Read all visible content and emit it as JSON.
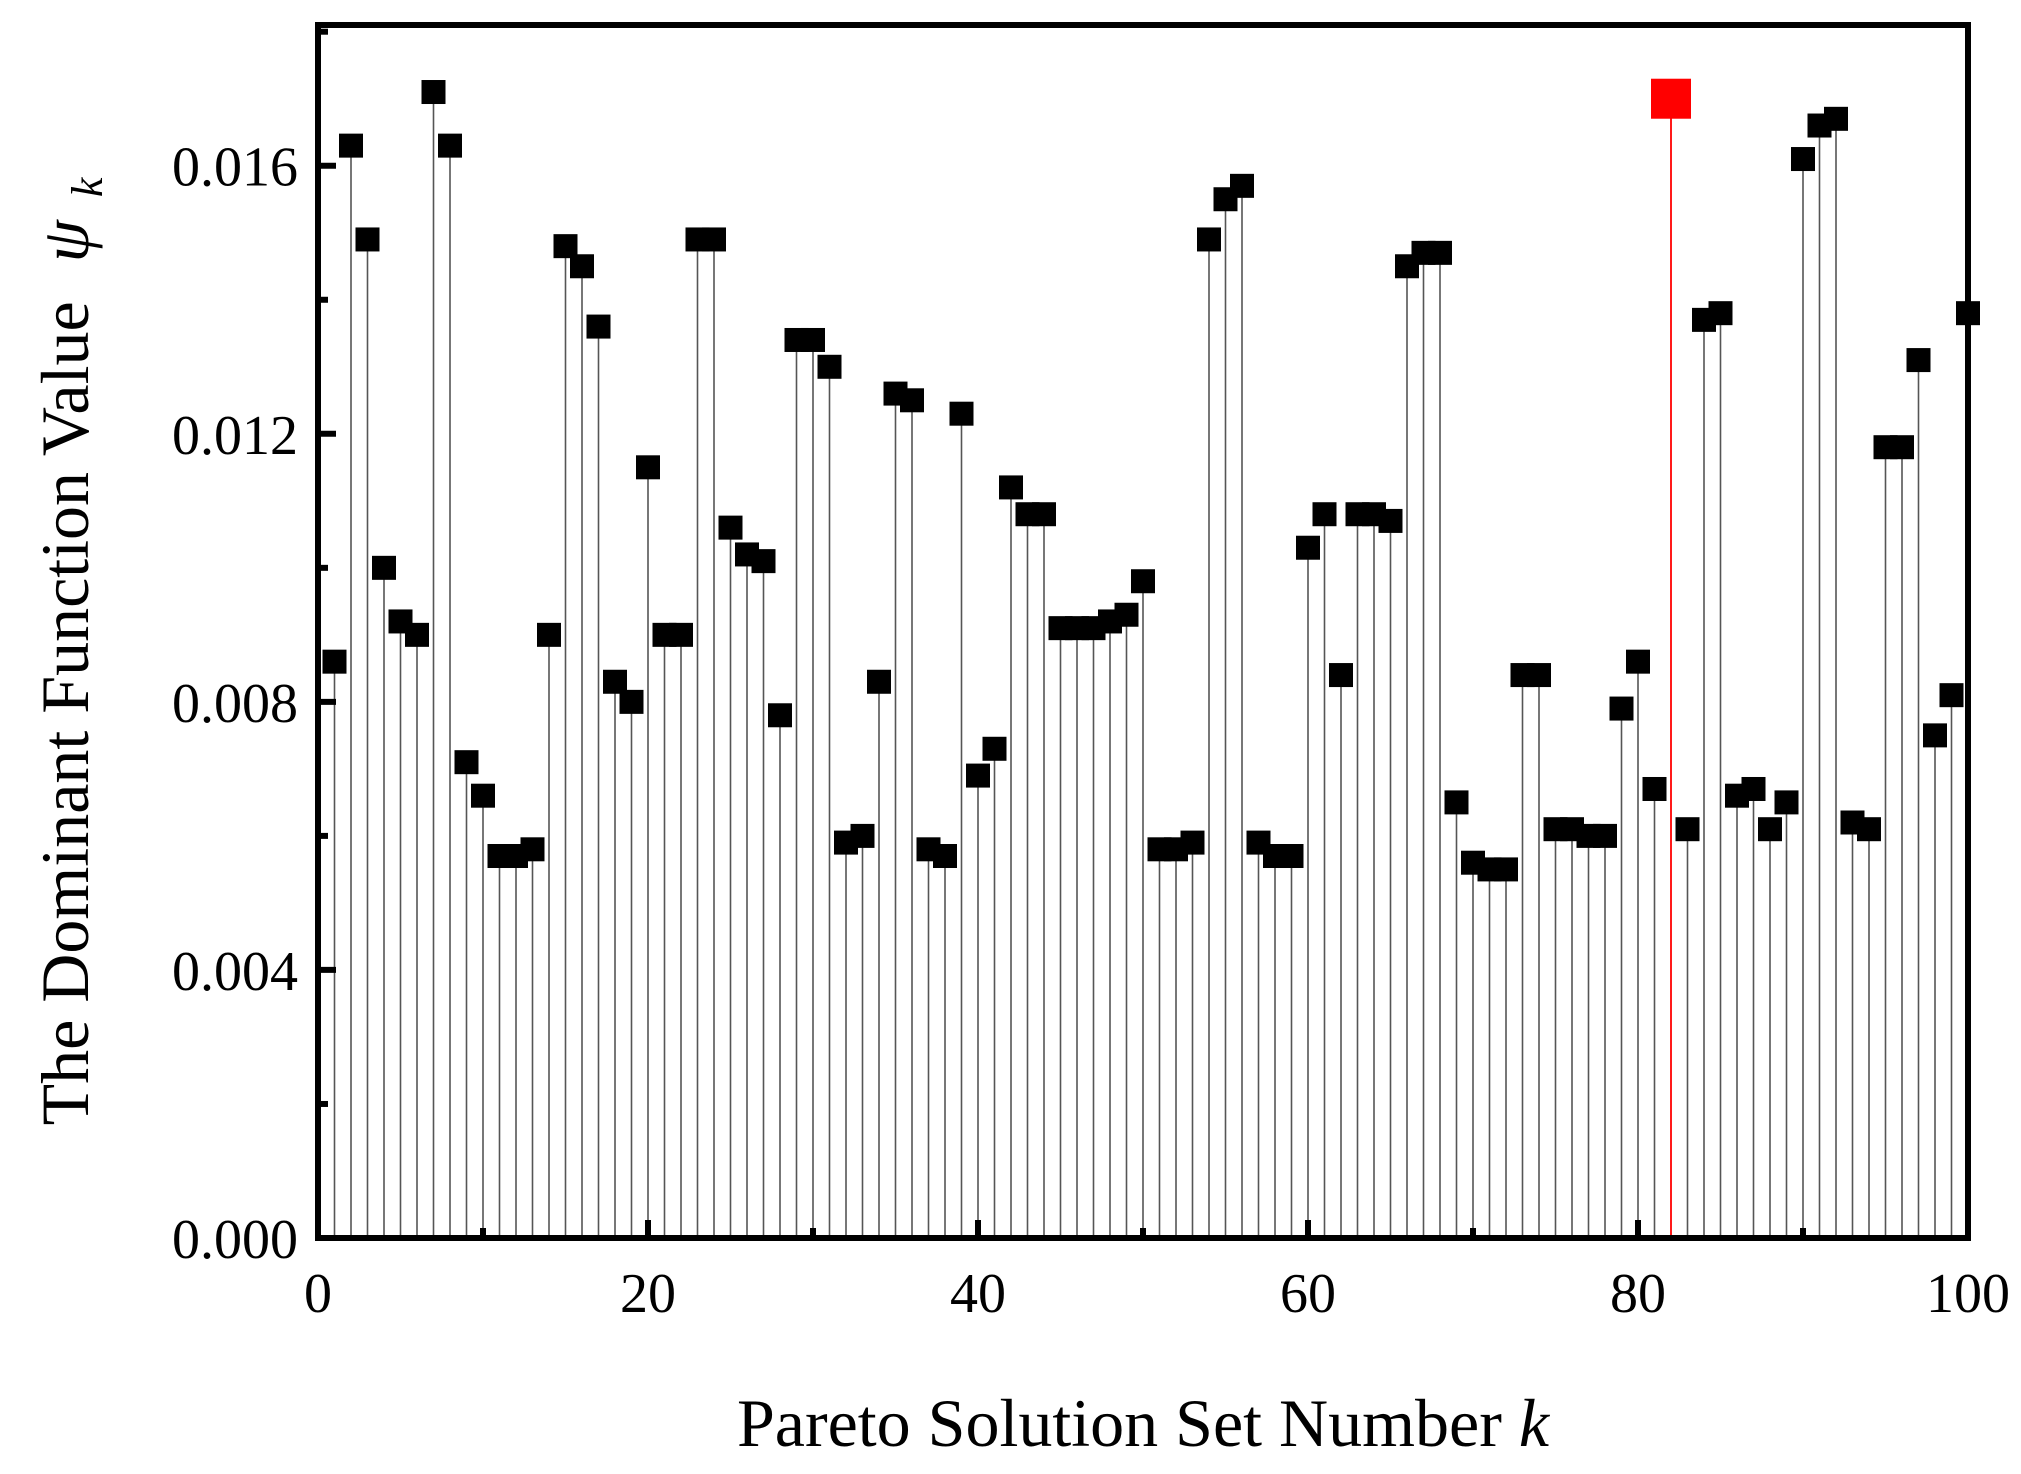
{
  "chart_data": {
    "type": "stem-scatter",
    "xlabel": "Pareto Solution Set Number",
    "xlabel_var": "k",
    "ylabel": "The Dominant Function Value",
    "ylabel_symbol": "ψ",
    "ylabel_sub": "k",
    "xlim": [
      0,
      100
    ],
    "ylim": [
      0,
      0.0181
    ],
    "x_ticks": [
      {
        "value": 0,
        "label": "0"
      },
      {
        "value": 20,
        "label": "20"
      },
      {
        "value": 40,
        "label": "40"
      },
      {
        "value": 60,
        "label": "60"
      },
      {
        "value": 80,
        "label": "80"
      },
      {
        "value": 100,
        "label": "100"
      }
    ],
    "y_ticks": [
      {
        "value": 0,
        "label": "0.000"
      },
      {
        "value": 0.004,
        "label": "0.004"
      },
      {
        "value": 0.008,
        "label": "0.008"
      },
      {
        "value": 0.012,
        "label": "0.012"
      },
      {
        "value": 0.016,
        "label": "0.016"
      }
    ],
    "grid": false,
    "colors": {
      "points": "#000000",
      "highlight": "#ff0000"
    },
    "highlight": {
      "x": 82,
      "y": 0.017
    },
    "series": [
      {
        "x": [
          1,
          2,
          3,
          4,
          5,
          6,
          7,
          8,
          9,
          10,
          11,
          12,
          13,
          14,
          15,
          16,
          17,
          18,
          19,
          20,
          21,
          22,
          23,
          24,
          25,
          26,
          27,
          28,
          29,
          30,
          31,
          32,
          33,
          34,
          35,
          36,
          37,
          38,
          39,
          40,
          41,
          42,
          43,
          44,
          45,
          46,
          47,
          48,
          49,
          50,
          51,
          52,
          53,
          54,
          55,
          56,
          57,
          58,
          59,
          60,
          61,
          62,
          63,
          64,
          65,
          66,
          67,
          68,
          69,
          70,
          71,
          72,
          73,
          74,
          75,
          76,
          77,
          78,
          79,
          80,
          81,
          83,
          84,
          85,
          86,
          87,
          88,
          89,
          90,
          91,
          92,
          93,
          94,
          95,
          96,
          97,
          98,
          99,
          100
        ],
        "y": [
          0.0086,
          0.0163,
          0.0149,
          0.01,
          0.0092,
          0.009,
          0.0171,
          0.0163,
          0.0071,
          0.0066,
          0.0057,
          0.0057,
          0.0058,
          0.009,
          0.0148,
          0.0145,
          0.0136,
          0.0083,
          0.008,
          0.0115,
          0.009,
          0.009,
          0.0149,
          0.0149,
          0.0106,
          0.0102,
          0.0101,
          0.0078,
          0.0134,
          0.0134,
          0.013,
          0.0059,
          0.006,
          0.0083,
          0.0126,
          0.0125,
          0.0058,
          0.0057,
          0.0123,
          0.0069,
          0.0073,
          0.0112,
          0.0108,
          0.0108,
          0.0091,
          0.0091,
          0.0091,
          0.0092,
          0.0093,
          0.0098,
          0.0058,
          0.0058,
          0.0059,
          0.0149,
          0.0155,
          0.0157,
          0.0059,
          0.0057,
          0.0057,
          0.0103,
          0.0108,
          0.0084,
          0.0108,
          0.0108,
          0.0107,
          0.0145,
          0.0147,
          0.0147,
          0.0065,
          0.0056,
          0.0055,
          0.0055,
          0.0084,
          0.0084,
          0.0061,
          0.0061,
          0.006,
          0.006,
          0.0079,
          0.0086,
          0.0067,
          0.0061,
          0.0137,
          0.0138,
          0.0066,
          0.0067,
          0.0061,
          0.0065,
          0.0161,
          0.0166,
          0.0167,
          0.0062,
          0.0061,
          0.0118,
          0.0118,
          0.0131,
          0.0075,
          0.0081,
          0.0138
        ]
      }
    ]
  }
}
